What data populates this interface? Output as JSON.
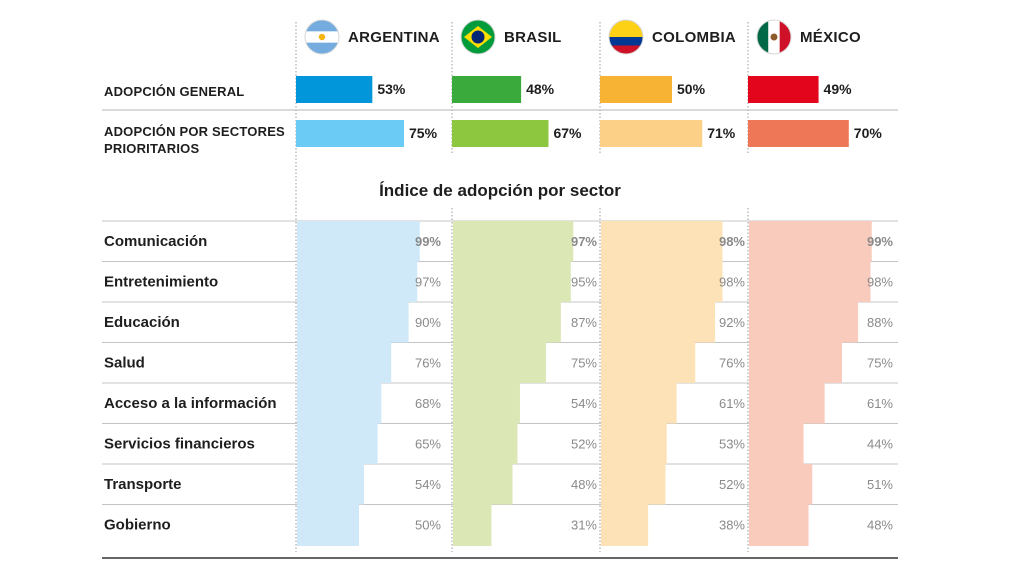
{
  "chart_data": {
    "type": "bar",
    "title": "Índice de adopción por sector",
    "countries": [
      {
        "name": "ARGENTINA",
        "flag": "argentina-flag",
        "color_main": "#0096d9",
        "color_light": "#6ccbf4",
        "color_pale": "#cfe9f9"
      },
      {
        "name": "BRASIL",
        "flag": "brasil-flag",
        "color_main": "#3aaa3c",
        "color_light": "#8dc63f",
        "color_pale": "#dbe8b5"
      },
      {
        "name": "COLOMBIA",
        "flag": "colombia-flag",
        "color_main": "#f7b334",
        "color_light": "#fdd088",
        "color_pale": "#fde2b8"
      },
      {
        "name": "MÉXICO",
        "flag": "mexico-flag",
        "color_main": "#e3051b",
        "color_light": "#ee7757",
        "color_pale": "#f9cbbd"
      }
    ],
    "summary_rows": [
      {
        "label_lines": [
          "ADOPCIÓN GENERAL"
        ],
        "values": [
          53,
          48,
          50,
          49
        ],
        "labels": [
          "53%",
          "48%",
          "50%",
          "49%"
        ]
      },
      {
        "label_lines": [
          "ADOPCIÓN POR SECTORES",
          "PRIORITARIOS"
        ],
        "values": [
          75,
          67,
          71,
          70
        ],
        "labels": [
          "75%",
          "67%",
          "71%",
          "70%"
        ]
      }
    ],
    "categories": [
      "Comunicación",
      "Entretenimiento",
      "Educación",
      "Salud",
      "Acceso a la información",
      "Servicios financieros",
      "Transporte",
      "Gobierno"
    ],
    "series": [
      {
        "name": "ARGENTINA",
        "values": [
          99,
          97,
          90,
          76,
          68,
          65,
          54,
          50
        ],
        "labels": [
          "99%",
          "97%",
          "90%",
          "76%",
          "68%",
          "65%",
          "54%",
          "50%"
        ]
      },
      {
        "name": "BRASIL",
        "values": [
          97,
          95,
          87,
          75,
          54,
          52,
          48,
          31
        ],
        "labels": [
          "97%",
          "95%",
          "87%",
          "75%",
          "54%",
          "52%",
          "48%",
          "31%"
        ]
      },
      {
        "name": "COLOMBIA",
        "values": [
          98,
          98,
          92,
          76,
          61,
          53,
          52,
          38
        ],
        "labels": [
          "98%",
          "98%",
          "92%",
          "76%",
          "61%",
          "53%",
          "52%",
          "38%"
        ]
      },
      {
        "name": "MÉXICO",
        "values": [
          99,
          98,
          88,
          75,
          61,
          44,
          51,
          48
        ],
        "labels": [
          "99%",
          "98%",
          "88%",
          "75%",
          "61%",
          "44%",
          "51%",
          "48%"
        ]
      }
    ],
    "ylim": [
      0,
      100
    ],
    "grid": true,
    "legend": "top"
  }
}
